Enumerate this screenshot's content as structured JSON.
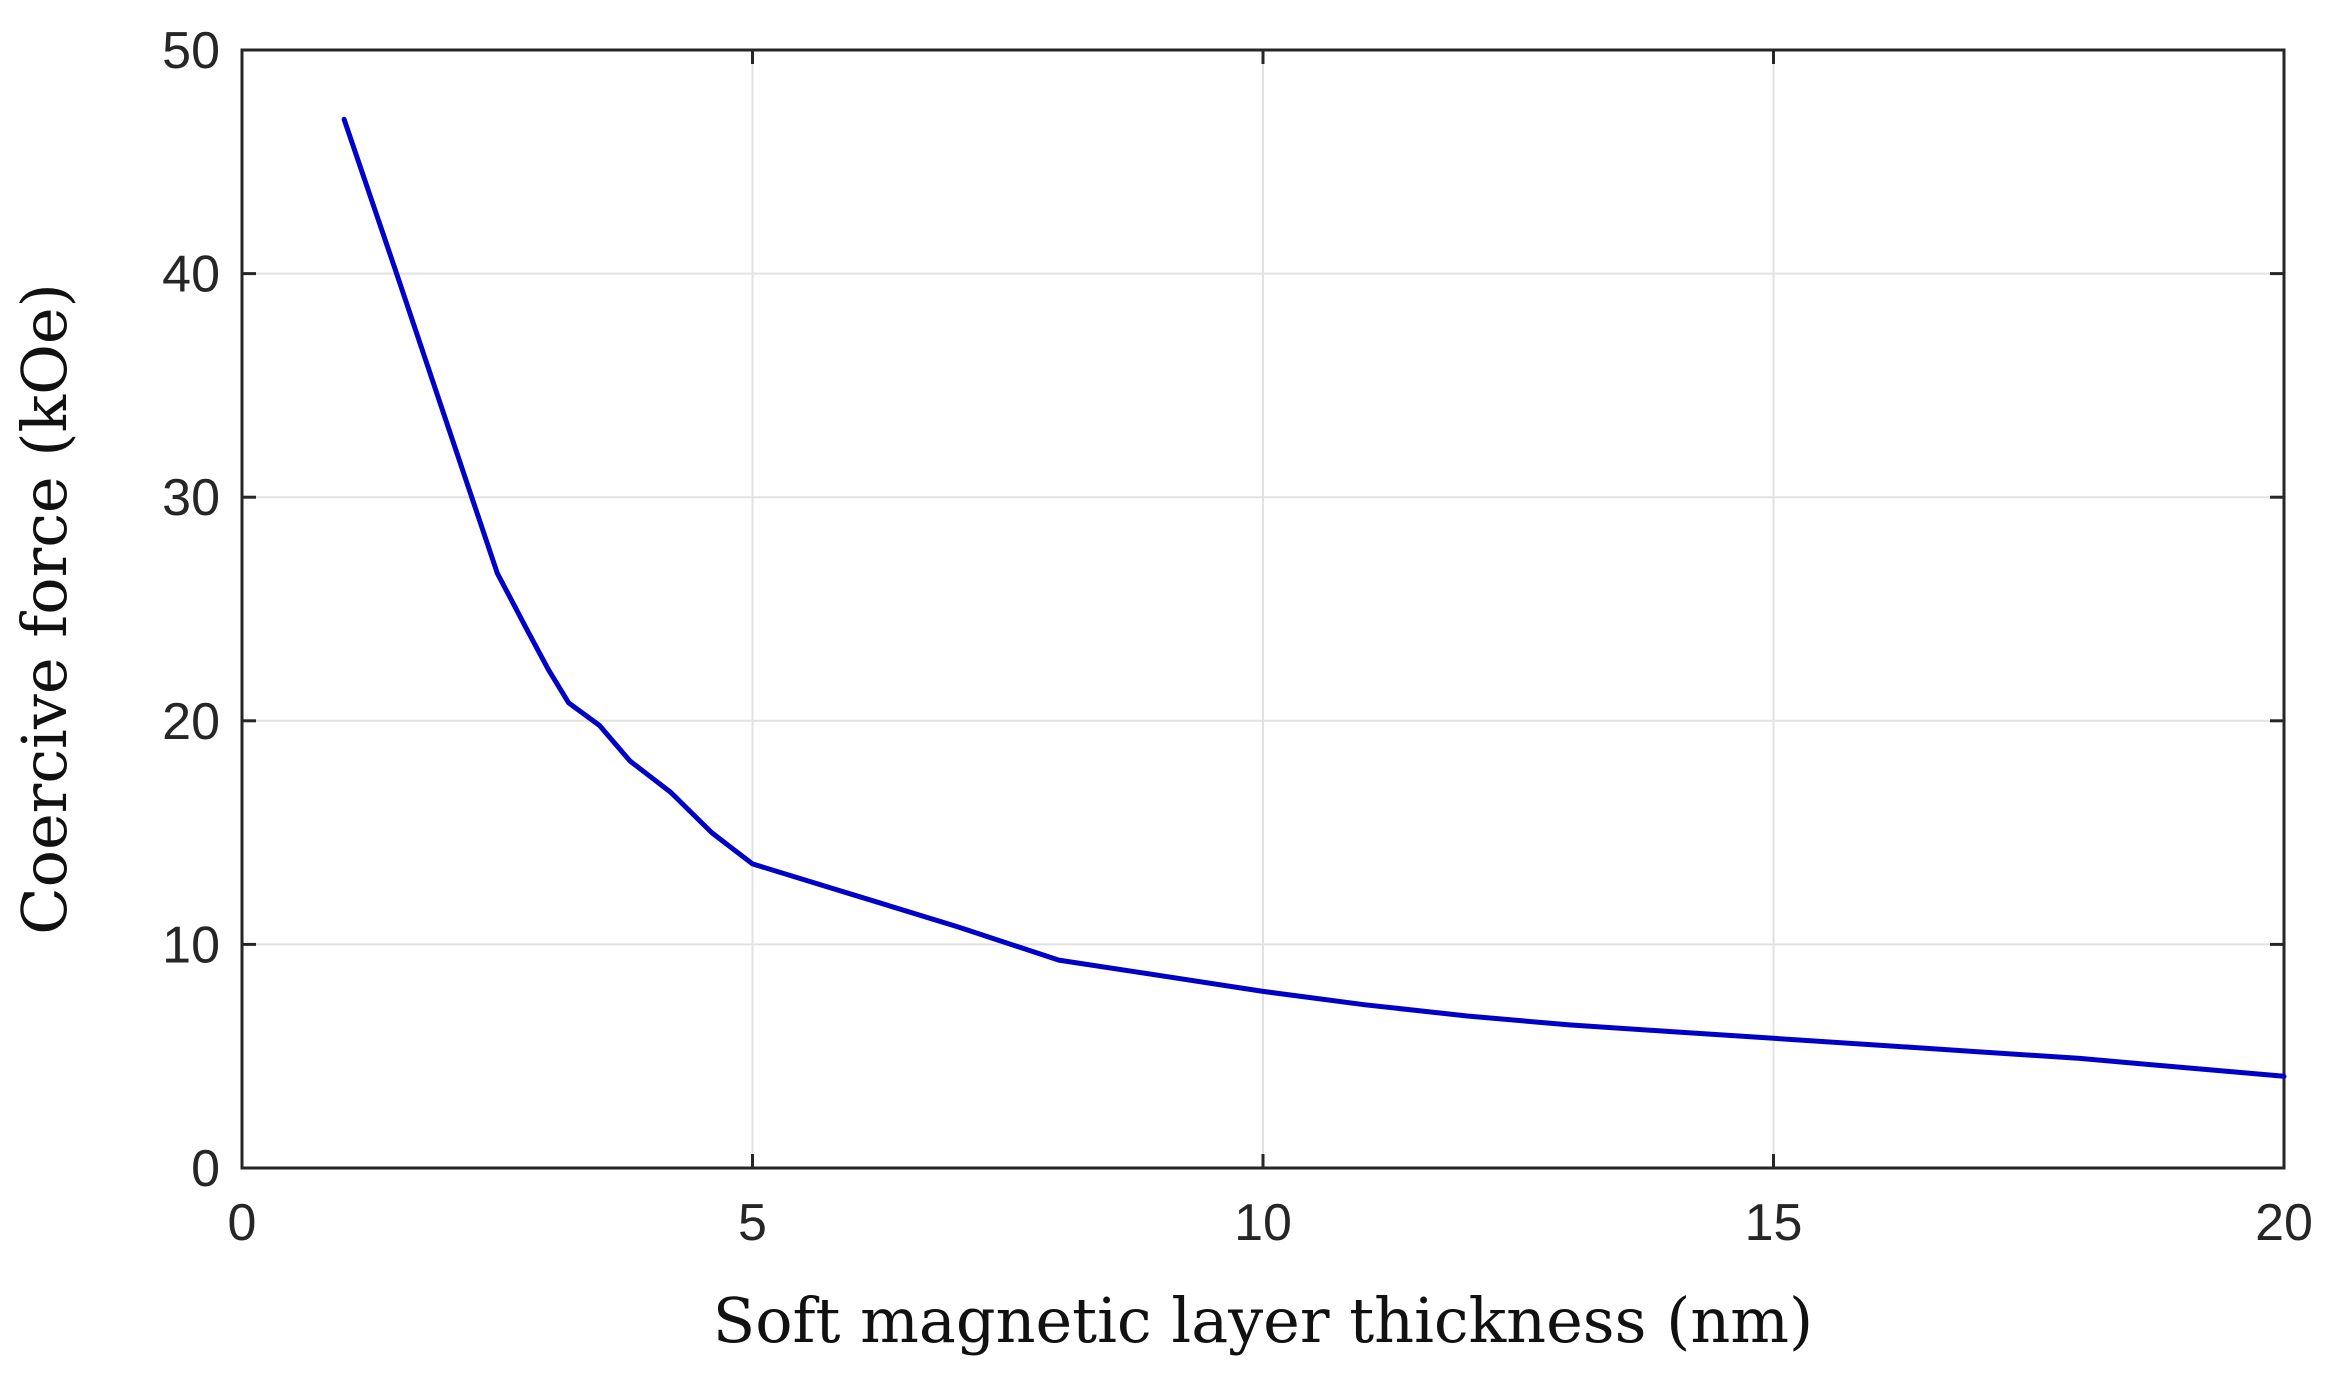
{
  "chart_data": {
    "type": "line",
    "title": "",
    "xlabel": "Soft magnetic layer thickness (nm)",
    "ylabel": "Coercive force (kOe)",
    "xlim": [
      0,
      20
    ],
    "ylim": [
      0,
      50
    ],
    "xticks": [
      0,
      5,
      10,
      15,
      20
    ],
    "yticks": [
      0,
      10,
      20,
      30,
      40,
      50
    ],
    "xtick_labels": [
      "0",
      "5",
      "10",
      "15",
      "20"
    ],
    "ytick_labels": [
      "0",
      "10",
      "20",
      "30",
      "40",
      "50"
    ],
    "grid": true,
    "legend": "none",
    "colors": {
      "line": "#0000c8",
      "grid": "#e2e2e2",
      "axes": "#262626"
    },
    "series": [
      {
        "x": [
          1.0,
          1.5,
          2.0,
          2.5,
          2.8,
          3.0,
          3.2,
          3.5,
          3.8,
          4.0,
          4.2,
          4.6,
          4.8,
          5.0,
          6.0,
          7.0,
          8.0,
          9.0,
          10.0,
          11.0,
          12.0,
          13.0,
          14.0,
          15.0,
          16.0,
          17.0,
          18.0,
          19.0,
          20.0
        ],
        "y": [
          46.9,
          40.2,
          33.4,
          26.6,
          24.0,
          22.3,
          20.8,
          19.8,
          18.2,
          17.5,
          16.8,
          15.0,
          14.3,
          13.6,
          12.2,
          10.8,
          9.3,
          8.6,
          7.9,
          7.3,
          6.8,
          6.4,
          6.1,
          5.8,
          5.5,
          5.2,
          4.9,
          4.5,
          4.1
        ]
      }
    ]
  }
}
